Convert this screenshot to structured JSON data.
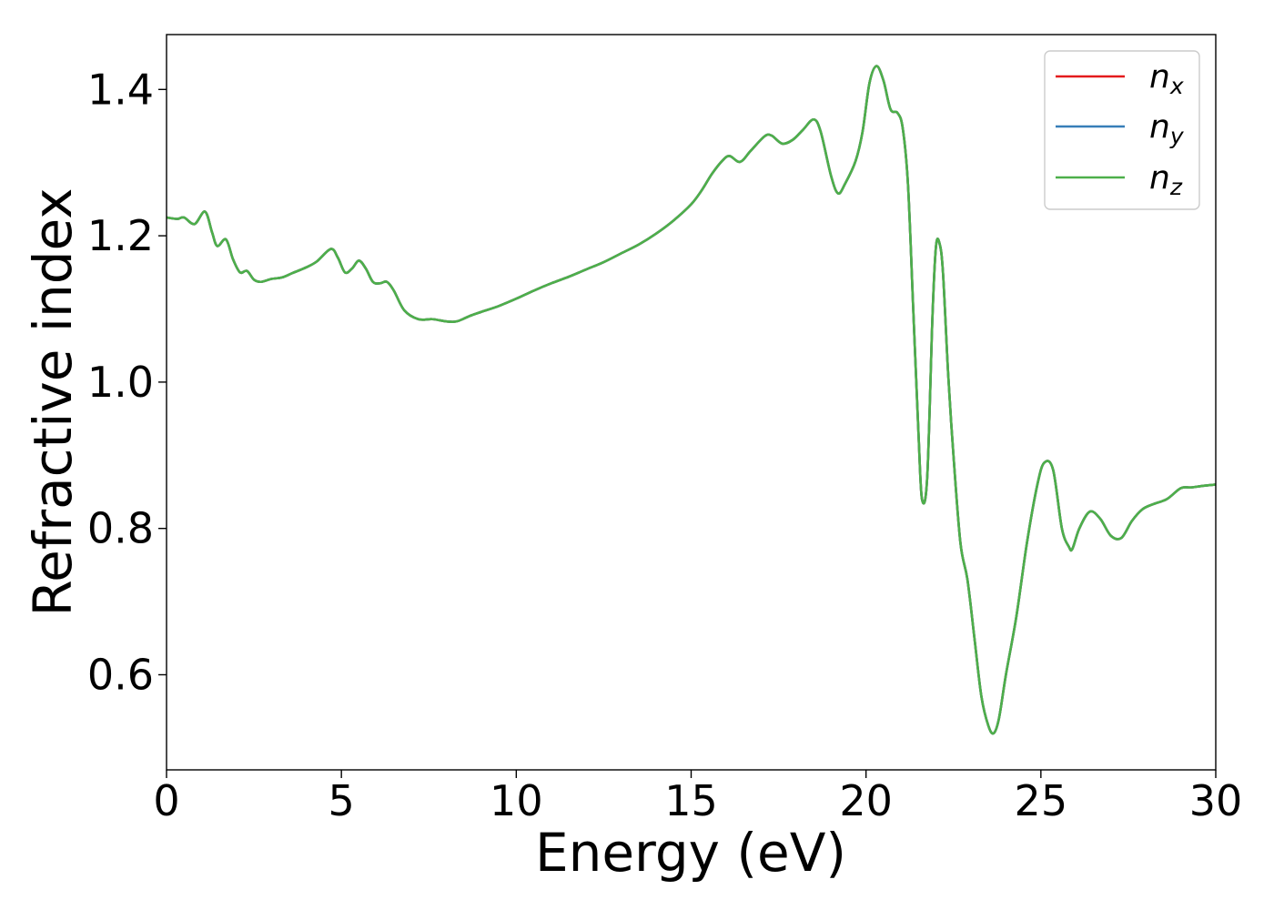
{
  "chart_data": {
    "type": "line",
    "xlabel": "Energy (eV)",
    "ylabel": "Refractive index",
    "xlim": [
      0,
      30
    ],
    "ylim": [
      0.47,
      1.475
    ],
    "x_ticks": [
      0,
      5,
      10,
      15,
      20,
      25,
      30
    ],
    "y_ticks": [
      0.6,
      0.8,
      1.0,
      1.2,
      1.4
    ],
    "x_tick_labels": [
      "0",
      "5",
      "10",
      "15",
      "20",
      "25",
      "30"
    ],
    "y_tick_labels": [
      "0.6",
      "0.8",
      "1.0",
      "1.2",
      "1.4"
    ],
    "grid": false,
    "legend_position": "top-right",
    "series": [
      {
        "name": "n",
        "subscript": "x",
        "color": "#e41a1c"
      },
      {
        "name": "n",
        "subscript": "y",
        "color": "#377eb8"
      },
      {
        "name": "n",
        "subscript": "z",
        "color": "#4daf4a"
      }
    ],
    "x": [
      0,
      0.3,
      0.5,
      0.8,
      1.1,
      1.3,
      1.45,
      1.7,
      1.9,
      2.1,
      2.3,
      2.5,
      2.7,
      3.0,
      3.3,
      3.6,
      4.0,
      4.3,
      4.7,
      4.9,
      5.1,
      5.3,
      5.5,
      5.7,
      5.9,
      6.1,
      6.3,
      6.5,
      6.8,
      7.2,
      7.6,
      8.0,
      8.3,
      8.7,
      9.0,
      9.5,
      10.0,
      10.5,
      11.0,
      11.5,
      12.0,
      12.5,
      13.0,
      13.5,
      14.0,
      14.5,
      15.0,
      15.3,
      15.6,
      15.9,
      16.1,
      16.4,
      16.7,
      17.1,
      17.3,
      17.6,
      17.9,
      18.2,
      18.5,
      18.7,
      19.0,
      19.2,
      19.4,
      19.7,
      19.9,
      20.1,
      20.3,
      20.5,
      20.7,
      20.9,
      21.05,
      21.2,
      21.35,
      21.5,
      21.6,
      21.75,
      21.9,
      22.0,
      22.1,
      22.2,
      22.35,
      22.5,
      22.7,
      22.9,
      23.1,
      23.3,
      23.5,
      23.65,
      23.8,
      24.0,
      24.3,
      24.6,
      24.9,
      25.1,
      25.35,
      25.6,
      25.8,
      25.9,
      26.1,
      26.4,
      26.7,
      27.0,
      27.3,
      27.6,
      27.9,
      28.2,
      28.6,
      29.0,
      29.3,
      29.6,
      30.0
    ],
    "y": [
      1.225,
      1.223,
      1.225,
      1.216,
      1.233,
      1.205,
      1.186,
      1.195,
      1.168,
      1.15,
      1.152,
      1.14,
      1.137,
      1.141,
      1.143,
      1.149,
      1.157,
      1.165,
      1.182,
      1.17,
      1.15,
      1.155,
      1.166,
      1.155,
      1.137,
      1.135,
      1.137,
      1.125,
      1.098,
      1.086,
      1.086,
      1.083,
      1.083,
      1.091,
      1.096,
      1.104,
      1.114,
      1.125,
      1.135,
      1.144,
      1.154,
      1.164,
      1.176,
      1.188,
      1.203,
      1.221,
      1.243,
      1.262,
      1.285,
      1.303,
      1.309,
      1.301,
      1.316,
      1.336,
      1.337,
      1.326,
      1.331,
      1.345,
      1.359,
      1.343,
      1.282,
      1.258,
      1.271,
      1.302,
      1.342,
      1.409,
      1.432,
      1.412,
      1.373,
      1.368,
      1.347,
      1.27,
      1.1,
      0.93,
      0.84,
      0.87,
      1.09,
      1.185,
      1.19,
      1.15,
      1.01,
      0.9,
      0.78,
      0.73,
      0.65,
      0.57,
      0.53,
      0.52,
      0.54,
      0.6,
      0.68,
      0.78,
      0.86,
      0.89,
      0.88,
      0.8,
      0.775,
      0.772,
      0.8,
      0.823,
      0.813,
      0.79,
      0.787,
      0.81,
      0.826,
      0.833,
      0.84,
      0.855,
      0.856,
      0.858,
      0.86
    ]
  }
}
